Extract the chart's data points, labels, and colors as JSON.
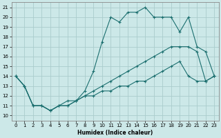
{
  "bg_color": "#cce8e8",
  "grid_color": "#aacccc",
  "line_color": "#1a6e6e",
  "xlabel": "Humidex (Indice chaleur)",
  "xlim": [
    -0.5,
    23.5
  ],
  "ylim": [
    9.5,
    21.5
  ],
  "xticks": [
    0,
    1,
    2,
    3,
    4,
    5,
    6,
    7,
    8,
    9,
    10,
    11,
    12,
    13,
    14,
    15,
    16,
    17,
    18,
    19,
    20,
    21,
    22,
    23
  ],
  "yticks": [
    10,
    11,
    12,
    13,
    14,
    15,
    16,
    17,
    18,
    19,
    20,
    21
  ],
  "line1_x": [
    0,
    1,
    2,
    3,
    4,
    5,
    6,
    7,
    8,
    9,
    10,
    11,
    12,
    13,
    14,
    15,
    16,
    17,
    18,
    19,
    20,
    21,
    22,
    23
  ],
  "line1_y": [
    14,
    13,
    11,
    11,
    10.5,
    11,
    11,
    11.5,
    12.5,
    14.5,
    17.5,
    20,
    19.5,
    20.5,
    20.5,
    21,
    20,
    20,
    20,
    18.5,
    20,
    17,
    16.5,
    14
  ],
  "line2_x": [
    0,
    1,
    2,
    3,
    4,
    5,
    6,
    7,
    8,
    9,
    10,
    11,
    12,
    13,
    14,
    15,
    16,
    17,
    18,
    19,
    20,
    21,
    22,
    23
  ],
  "line2_y": [
    14,
    13,
    11,
    11,
    10.5,
    11,
    11,
    11.5,
    12,
    12.5,
    13,
    13.5,
    14,
    14.5,
    15,
    15.5,
    16,
    16.5,
    17,
    17,
    17,
    16.5,
    13.5,
    14
  ],
  "line3_x": [
    0,
    1,
    2,
    3,
    4,
    5,
    6,
    7,
    8,
    9,
    10,
    11,
    12,
    13,
    14,
    15,
    16,
    17,
    18,
    19,
    20,
    21,
    22,
    23
  ],
  "line3_y": [
    14,
    13,
    11,
    11,
    10.5,
    11,
    11.5,
    11.5,
    12,
    12,
    12.5,
    12.5,
    13,
    13,
    13.5,
    13.5,
    14,
    14.5,
    15,
    15.5,
    14,
    13.5,
    13.5,
    14
  ]
}
